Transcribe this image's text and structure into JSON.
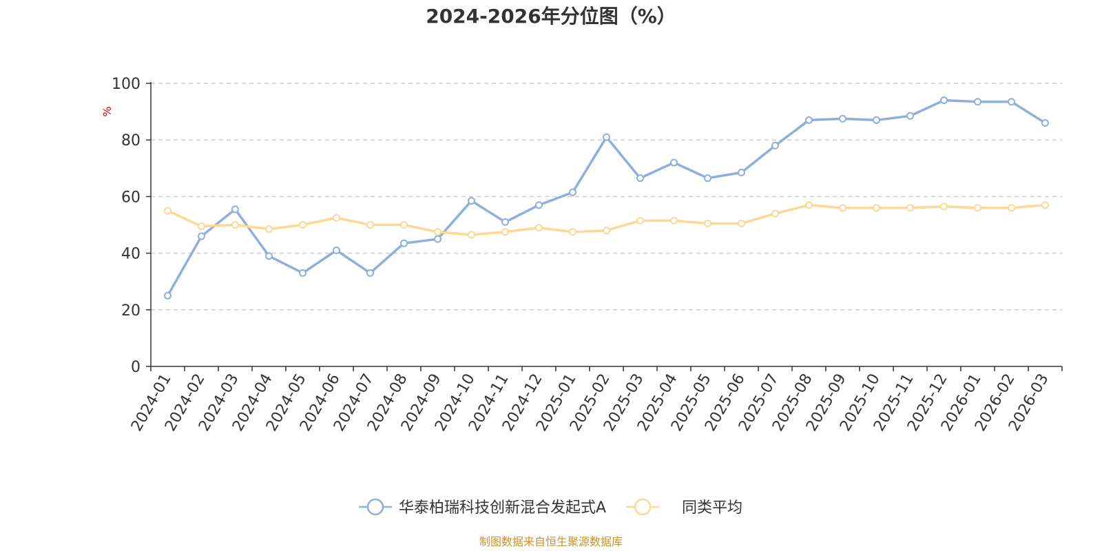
{
  "chart_data": {
    "type": "line",
    "title": "2024-2026年分位图（%）",
    "ylabel": "%",
    "ylim": [
      0,
      100
    ],
    "yticks": [
      "0",
      "20",
      "40",
      "60",
      "80",
      "100"
    ],
    "grid": true,
    "legend_position": "bottom",
    "categories": [
      "2024-01",
      "2024-02",
      "2024-03",
      "2024-04",
      "2024-05",
      "2024-06",
      "2024-07",
      "2024-08",
      "2024-09",
      "2024-10",
      "2024-11",
      "2024-12",
      "2025-01",
      "2025-02",
      "2025-03",
      "2025-04",
      "2025-05",
      "2025-06",
      "2025-07",
      "2025-08",
      "2025-09",
      "2025-10",
      "2025-11",
      "2025-12",
      "2026-01",
      "2026-02",
      "2026-03"
    ],
    "series": [
      {
        "name": "华泰柏瑞科技创新混合发起式A",
        "color": "#8eaedb",
        "values": [
          25,
          46,
          55.5,
          39,
          33,
          41,
          33,
          43.5,
          45,
          58.5,
          51,
          57,
          61.5,
          81,
          66.5,
          72,
          66.5,
          68.5,
          78,
          87,
          87.5,
          87,
          88.5,
          94,
          93.5,
          93.5,
          86
        ]
      },
      {
        "name": "同类平均",
        "color": "#fcd895",
        "values": [
          55,
          49.5,
          50,
          48.5,
          50,
          52.5,
          50,
          50,
          47.5,
          46.5,
          47.5,
          49,
          47.5,
          48,
          51.5,
          51.5,
          50.5,
          50.5,
          54,
          57,
          56,
          56,
          56,
          56.5,
          56,
          56,
          57
        ]
      }
    ]
  },
  "footer": {
    "source": "制图数据来自恒生聚源数据库"
  }
}
